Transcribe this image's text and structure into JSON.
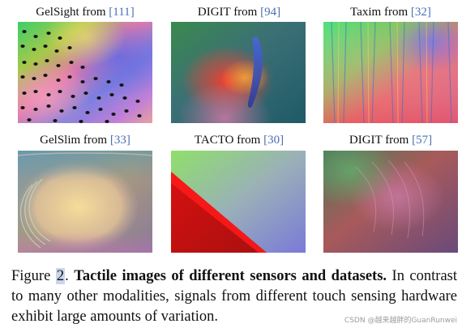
{
  "panels": [
    {
      "name": "GelSight",
      "prefix": "GelSight from ",
      "ref": "111"
    },
    {
      "name": "DIGIT",
      "prefix": "DIGIT from ",
      "ref": "94"
    },
    {
      "name": "Taxim",
      "prefix": "Taxim from ",
      "ref": "32"
    },
    {
      "name": "GelSlim",
      "prefix": "GelSlim from ",
      "ref": "33"
    },
    {
      "name": "TACTO",
      "prefix": "TACTO from ",
      "ref": "30"
    },
    {
      "name": "DIGIT-2",
      "prefix": "DIGIT from ",
      "ref": "57"
    }
  ],
  "caption": {
    "label": "Figure ",
    "number": "2",
    "period": ". ",
    "bold": "Tactile images of different sensors and datasets.",
    "text": " In contrast to many other modalities, signals from different touch sensing hardware exhibit large amounts of variation."
  },
  "watermark": "CSDN @越来越胖的GuanRunwei"
}
